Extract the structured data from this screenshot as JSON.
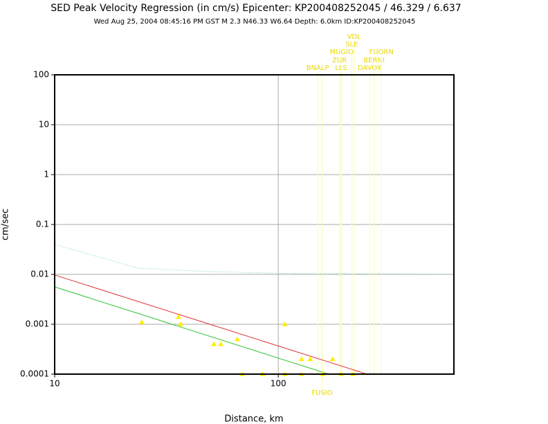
{
  "chart_data": {
    "type": "scatter",
    "title": "SED Peak Velocity Regression (in cm/s) Epicenter: KP200408252045 / 46.329 / 6.637",
    "subtitle": "Wed Aug 25, 2004 08:45:16 PM GST   M 2.3   N46.33 W6.64   Depth: 6.0km   ID:KP200408252045",
    "xlabel": "Distance, km",
    "ylabel": "cm/sec",
    "xlog": true,
    "ylog": true,
    "xlim": [
      10,
      610
    ],
    "ylim": [
      0.0001,
      100
    ],
    "xticks": [
      10,
      100
    ],
    "yticks": [
      100,
      10,
      1,
      0.1,
      0.01,
      0.001,
      0.0001
    ],
    "grid": true,
    "points": {
      "color": "#ffee00",
      "x": [
        24.5,
        35.8,
        36.6,
        51.5,
        55.3,
        65.6,
        107,
        127,
        139,
        175,
        68.9,
        84.9,
        107,
        127,
        158,
        191,
        216
      ],
      "values": [
        0.0011,
        0.0014,
        0.001,
        0.0004,
        0.0004,
        0.0005,
        0.001,
        0.0002,
        0.0002,
        0.0002,
        0.0001,
        0.0001,
        0.0001,
        0.0001,
        0.0001,
        0.0001,
        0.0001
      ]
    },
    "fits": [
      {
        "color": "#e03030",
        "dashed": false,
        "x": [
          10,
          249
        ],
        "values": [
          0.0097,
          0.0001
        ]
      },
      {
        "color": "#30c030",
        "dashed": false,
        "x": [
          10,
          168
        ],
        "values": [
          0.0056,
          0.0001
        ]
      },
      {
        "color": "#a0e0d0",
        "dashed": true,
        "x": [
          10,
          23.7,
          48.3,
          100,
          610
        ],
        "values": [
          0.04,
          0.0133,
          0.0114,
          0.0105,
          0.0101
        ]
      }
    ],
    "station_color": "#ffff99",
    "station_label_color": "#e8d800",
    "stations": [
      {
        "label": "BNALP",
        "x": 150
      },
      {
        "label": "FUSIO",
        "x": 157
      },
      {
        "label": "ZUR",
        "x": 188
      },
      {
        "label": "LLS",
        "x": 191
      },
      {
        "label": "MUGIO",
        "x": 192
      },
      {
        "label": "SLE",
        "x": 213
      },
      {
        "label": "VDL",
        "x": 218
      },
      {
        "label": "DAVOX",
        "x": 256
      },
      {
        "label": "BERNI",
        "x": 268
      },
      {
        "label": "FUORN",
        "x": 289
      }
    ]
  }
}
